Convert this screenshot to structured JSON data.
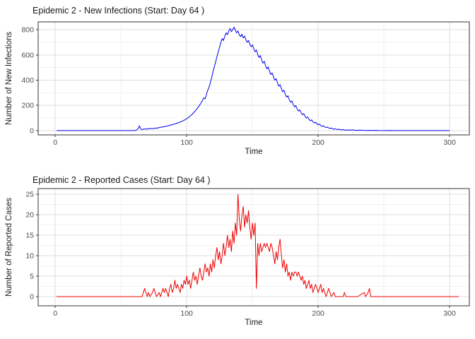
{
  "page": {
    "background": "#ffffff"
  },
  "style": {
    "grid_major": "#DEDEDE",
    "grid_minor": "#F1F1F1",
    "panel_border": "#333333",
    "panel_fill": "#FFFFFF",
    "tick_color": "#333333",
    "tick_label_color": "#4D4D4D",
    "title_color": "#1A1A1A"
  },
  "chart_data": [
    {
      "type": "line",
      "title": "Epidemic 2 - New Infections (Start: Day 64 )",
      "xlabel": "Time",
      "ylabel": "Number of New Infections",
      "line_color": "#0000EE",
      "grid": true,
      "legend": "none",
      "xlim": [
        -13,
        315
      ],
      "ylim": [
        -34,
        862
      ],
      "x_ticks": [
        0,
        100,
        200,
        300
      ],
      "x_minor_ticks": [
        50,
        150,
        250
      ],
      "y_ticks": [
        0,
        200,
        400,
        600,
        800
      ],
      "y_minor_ticks": [
        100,
        300,
        500,
        700
      ],
      "points": [
        [
          1,
          0
        ],
        [
          10,
          0
        ],
        [
          20,
          0
        ],
        [
          30,
          0
        ],
        [
          40,
          0
        ],
        [
          50,
          0
        ],
        [
          56,
          0
        ],
        [
          60,
          0
        ],
        [
          61,
          2
        ],
        [
          62,
          6
        ],
        [
          63,
          14
        ],
        [
          64,
          38
        ],
        [
          65,
          14
        ],
        [
          66,
          7
        ],
        [
          67,
          11
        ],
        [
          68,
          15
        ],
        [
          69,
          10
        ],
        [
          70,
          14
        ],
        [
          71,
          17
        ],
        [
          72,
          13
        ],
        [
          73,
          18
        ],
        [
          74,
          15
        ],
        [
          75,
          20
        ],
        [
          76,
          17
        ],
        [
          77,
          22
        ],
        [
          78,
          19
        ],
        [
          79,
          24
        ],
        [
          80,
          26
        ],
        [
          82,
          30
        ],
        [
          84,
          34
        ],
        [
          86,
          38
        ],
        [
          88,
          44
        ],
        [
          90,
          50
        ],
        [
          92,
          56
        ],
        [
          94,
          64
        ],
        [
          96,
          72
        ],
        [
          98,
          82
        ],
        [
          100,
          95
        ],
        [
          102,
          110
        ],
        [
          104,
          128
        ],
        [
          106,
          150
        ],
        [
          108,
          175
        ],
        [
          110,
          205
        ],
        [
          112,
          240
        ],
        [
          113,
          260
        ],
        [
          114,
          252
        ],
        [
          115,
          285
        ],
        [
          116,
          320
        ],
        [
          117,
          345
        ],
        [
          118,
          380
        ],
        [
          119,
          420
        ],
        [
          120,
          465
        ],
        [
          121,
          505
        ],
        [
          122,
          545
        ],
        [
          123,
          585
        ],
        [
          124,
          625
        ],
        [
          125,
          660
        ],
        [
          126,
          700
        ],
        [
          127,
          730
        ],
        [
          128,
          715
        ],
        [
          129,
          750
        ],
        [
          130,
          775
        ],
        [
          131,
          760
        ],
        [
          132,
          790
        ],
        [
          133,
          810
        ],
        [
          134,
          785
        ],
        [
          135,
          800
        ],
        [
          136,
          820
        ],
        [
          137,
          795
        ],
        [
          138,
          775
        ],
        [
          139,
          790
        ],
        [
          140,
          760
        ],
        [
          141,
          745
        ],
        [
          142,
          765
        ],
        [
          143,
          735
        ],
        [
          144,
          750
        ],
        [
          145,
          720
        ],
        [
          146,
          700
        ],
        [
          147,
          715
        ],
        [
          148,
          685
        ],
        [
          149,
          665
        ],
        [
          150,
          680
        ],
        [
          151,
          650
        ],
        [
          152,
          625
        ],
        [
          153,
          640
        ],
        [
          154,
          605
        ],
        [
          155,
          580
        ],
        [
          156,
          595
        ],
        [
          157,
          560
        ],
        [
          158,
          535
        ],
        [
          159,
          550
        ],
        [
          160,
          515
        ],
        [
          161,
          490
        ],
        [
          162,
          505
        ],
        [
          163,
          470
        ],
        [
          164,
          445
        ],
        [
          165,
          458
        ],
        [
          166,
          425
        ],
        [
          167,
          400
        ],
        [
          168,
          412
        ],
        [
          169,
          378
        ],
        [
          170,
          352
        ],
        [
          171,
          365
        ],
        [
          172,
          332
        ],
        [
          173,
          308
        ],
        [
          174,
          320
        ],
        [
          175,
          288
        ],
        [
          176,
          265
        ],
        [
          177,
          276
        ],
        [
          178,
          246
        ],
        [
          179,
          225
        ],
        [
          180,
          236
        ],
        [
          181,
          208
        ],
        [
          182,
          188
        ],
        [
          183,
          198
        ],
        [
          184,
          172
        ],
        [
          185,
          155
        ],
        [
          186,
          165
        ],
        [
          187,
          142
        ],
        [
          188,
          126
        ],
        [
          189,
          135
        ],
        [
          190,
          114
        ],
        [
          191,
          100
        ],
        [
          192,
          108
        ],
        [
          193,
          90
        ],
        [
          194,
          78
        ],
        [
          195,
          86
        ],
        [
          196,
          70
        ],
        [
          197,
          60
        ],
        [
          198,
          67
        ],
        [
          199,
          54
        ],
        [
          200,
          46
        ],
        [
          201,
          52
        ],
        [
          202,
          40
        ],
        [
          203,
          33
        ],
        [
          204,
          39
        ],
        [
          205,
          29
        ],
        [
          206,
          24
        ],
        [
          207,
          29
        ],
        [
          208,
          21
        ],
        [
          209,
          17
        ],
        [
          210,
          21
        ],
        [
          211,
          14
        ],
        [
          212,
          11
        ],
        [
          213,
          15
        ],
        [
          214,
          10
        ],
        [
          215,
          8
        ],
        [
          216,
          12
        ],
        [
          217,
          7
        ],
        [
          218,
          5
        ],
        [
          219,
          9
        ],
        [
          220,
          5
        ],
        [
          221,
          3
        ],
        [
          222,
          6
        ],
        [
          224,
          3
        ],
        [
          226,
          6
        ],
        [
          228,
          3
        ],
        [
          230,
          2
        ],
        [
          232,
          4
        ],
        [
          234,
          2
        ],
        [
          236,
          1
        ],
        [
          238,
          2
        ],
        [
          240,
          1
        ],
        [
          243,
          2
        ],
        [
          246,
          1
        ],
        [
          250,
          0
        ],
        [
          255,
          1
        ],
        [
          258,
          0
        ],
        [
          265,
          0
        ],
        [
          275,
          0
        ],
        [
          285,
          0
        ],
        [
          295,
          0
        ],
        [
          300,
          0
        ]
      ]
    },
    {
      "type": "line",
      "title": "Epidemic 2 - Reported Cases (Start: Day 64 )",
      "xlabel": "Time",
      "ylabel": "Number of Reported Cases",
      "line_color": "#EE0000",
      "grid": true,
      "legend": "none",
      "xlim": [
        -13,
        315
      ],
      "ylim": [
        -2.25,
        26.4
      ],
      "x_ticks": [
        0,
        100,
        200,
        300
      ],
      "x_minor_ticks": [
        50,
        150,
        250
      ],
      "y_ticks": [
        0,
        5,
        10,
        15,
        20,
        25
      ],
      "y_minor_ticks": [
        2.5,
        7.5,
        12.5,
        17.5,
        22.5
      ],
      "points": [
        [
          1,
          0
        ],
        [
          10,
          0
        ],
        [
          20,
          0
        ],
        [
          30,
          0
        ],
        [
          40,
          0
        ],
        [
          50,
          0
        ],
        [
          60,
          0
        ],
        [
          64,
          0
        ],
        [
          66,
          0
        ],
        [
          67,
          1
        ],
        [
          68,
          2
        ],
        [
          69,
          1
        ],
        [
          70,
          0
        ],
        [
          71,
          1
        ],
        [
          72,
          0
        ],
        [
          74,
          1
        ],
        [
          75,
          2
        ],
        [
          76,
          1
        ],
        [
          77,
          0
        ],
        [
          79,
          1
        ],
        [
          80,
          0
        ],
        [
          81,
          1
        ],
        [
          82,
          2
        ],
        [
          83,
          1
        ],
        [
          84,
          2
        ],
        [
          85,
          1
        ],
        [
          86,
          0
        ],
        [
          87,
          2
        ],
        [
          88,
          3
        ],
        [
          89,
          1
        ],
        [
          90,
          2
        ],
        [
          91,
          4
        ],
        [
          92,
          2
        ],
        [
          93,
          3
        ],
        [
          94,
          2
        ],
        [
          95,
          1
        ],
        [
          96,
          3
        ],
        [
          97,
          2
        ],
        [
          98,
          4
        ],
        [
          99,
          3
        ],
        [
          100,
          5
        ],
        [
          101,
          3
        ],
        [
          102,
          4
        ],
        [
          103,
          2
        ],
        [
          104,
          4
        ],
        [
          105,
          6
        ],
        [
          106,
          4
        ],
        [
          107,
          5
        ],
        [
          108,
          3
        ],
        [
          109,
          5
        ],
        [
          110,
          7
        ],
        [
          111,
          5
        ],
        [
          112,
          4
        ],
        [
          113,
          6
        ],
        [
          114,
          8
        ],
        [
          115,
          6
        ],
        [
          116,
          7
        ],
        [
          117,
          5
        ],
        [
          118,
          8
        ],
        [
          119,
          6
        ],
        [
          120,
          9
        ],
        [
          121,
          7
        ],
        [
          122,
          10
        ],
        [
          123,
          12
        ],
        [
          124,
          9
        ],
        [
          125,
          11
        ],
        [
          126,
          8
        ],
        [
          127,
          10
        ],
        [
          128,
          13
        ],
        [
          129,
          10
        ],
        [
          130,
          12
        ],
        [
          131,
          15
        ],
        [
          132,
          12
        ],
        [
          133,
          14
        ],
        [
          134,
          11
        ],
        [
          135,
          16
        ],
        [
          136,
          13
        ],
        [
          137,
          18
        ],
        [
          138,
          15
        ],
        [
          139,
          25
        ],
        [
          140,
          19
        ],
        [
          141,
          16
        ],
        [
          142,
          20
        ],
        [
          143,
          22
        ],
        [
          144,
          17
        ],
        [
          145,
          20
        ],
        [
          146,
          18
        ],
        [
          147,
          21
        ],
        [
          148,
          17
        ],
        [
          149,
          14
        ],
        [
          150,
          18
        ],
        [
          151,
          15
        ],
        [
          152,
          18
        ],
        [
          153,
          2
        ],
        [
          154,
          13
        ],
        [
          155,
          10
        ],
        [
          156,
          13
        ],
        [
          157,
          11
        ],
        [
          158,
          12
        ],
        [
          159,
          13
        ],
        [
          160,
          12
        ],
        [
          161,
          13
        ],
        [
          162,
          12
        ],
        [
          163,
          11
        ],
        [
          164,
          13
        ],
        [
          165,
          12
        ],
        [
          166,
          10
        ],
        [
          167,
          8
        ],
        [
          168,
          11
        ],
        [
          169,
          9
        ],
        [
          170,
          12
        ],
        [
          171,
          14
        ],
        [
          172,
          10
        ],
        [
          173,
          7
        ],
        [
          174,
          9
        ],
        [
          175,
          6
        ],
        [
          176,
          8
        ],
        [
          177,
          5
        ],
        [
          178,
          6
        ],
        [
          179,
          4
        ],
        [
          180,
          6
        ],
        [
          181,
          5
        ],
        [
          182,
          6
        ],
        [
          183,
          6
        ],
        [
          184,
          5
        ],
        [
          185,
          6
        ],
        [
          186,
          5
        ],
        [
          187,
          4
        ],
        [
          188,
          5
        ],
        [
          189,
          3
        ],
        [
          190,
          4
        ],
        [
          191,
          2
        ],
        [
          192,
          3
        ],
        [
          193,
          4
        ],
        [
          194,
          2
        ],
        [
          195,
          3
        ],
        [
          196,
          1
        ],
        [
          197,
          2
        ],
        [
          198,
          3
        ],
        [
          199,
          2
        ],
        [
          200,
          1
        ],
        [
          201,
          2
        ],
        [
          202,
          3
        ],
        [
          203,
          1
        ],
        [
          204,
          2
        ],
        [
          205,
          1
        ],
        [
          206,
          0
        ],
        [
          207,
          1
        ],
        [
          208,
          2
        ],
        [
          209,
          1
        ],
        [
          210,
          0
        ],
        [
          212,
          1
        ],
        [
          213,
          0
        ],
        [
          216,
          0
        ],
        [
          219,
          0
        ],
        [
          220,
          1
        ],
        [
          221,
          0
        ],
        [
          225,
          0
        ],
        [
          230,
          0
        ],
        [
          235,
          1
        ],
        [
          236,
          0
        ],
        [
          238,
          1
        ],
        [
          239,
          2
        ],
        [
          240,
          0
        ],
        [
          245,
          0
        ],
        [
          252,
          0
        ],
        [
          260,
          0
        ],
        [
          270,
          0
        ],
        [
          280,
          0
        ],
        [
          290,
          0
        ],
        [
          300,
          0
        ],
        [
          307,
          0
        ]
      ]
    }
  ]
}
